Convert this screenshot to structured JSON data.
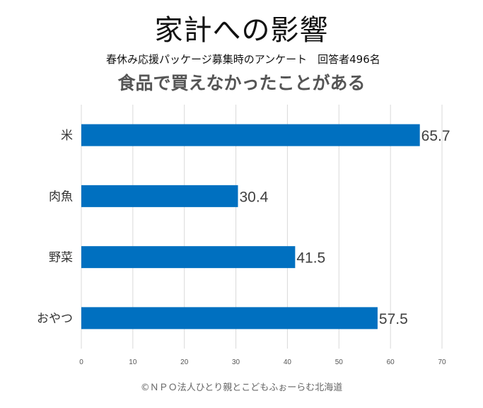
{
  "header": {
    "title": "家計への影響",
    "subtitle": "春休み応援パッケージ募集時のアンケート　回答者496名",
    "heading": "食品で買えなかったことがある"
  },
  "footer": {
    "credit": "©ＮＰＯ法人ひとり親とこどもふぉーらむ北海道"
  },
  "chart_data": {
    "type": "bar",
    "orientation": "horizontal",
    "categories": [
      "米",
      "肉魚",
      "野菜",
      "おやつ"
    ],
    "values": [
      65.7,
      30.4,
      41.5,
      57.5
    ],
    "value_labels": [
      "65.7",
      "30.4",
      "41.5",
      "57.5"
    ],
    "xlim": [
      0,
      70
    ],
    "x_ticks": [
      "0",
      "10",
      "20",
      "30",
      "40",
      "50",
      "60",
      "70"
    ],
    "grid": true,
    "legend": "none",
    "bar_color": "#0070C0",
    "grid_color": "#D9D9D9"
  }
}
